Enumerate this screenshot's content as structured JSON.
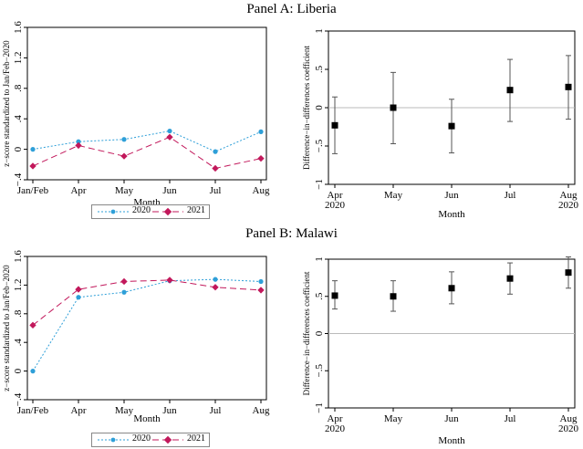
{
  "panels": [
    {
      "title": "Panel A: Liberia",
      "legend": [
        {
          "name": "2020",
          "color": "#2e9fd8"
        },
        {
          "name": "2021",
          "color": "#c2185b"
        }
      ]
    },
    {
      "title": "Panel B: Malawi",
      "legend": [
        {
          "name": "2020",
          "color": "#2e9fd8"
        },
        {
          "name": "2021",
          "color": "#c2185b"
        }
      ]
    }
  ],
  "chart_data": [
    {
      "id": "liberia-trend",
      "type": "line",
      "title": "",
      "xlabel": "Month",
      "ylabel": "z−score standardized to Jan/Feb−2020",
      "categories": [
        "Jan/Feb",
        "Apr",
        "May",
        "Jun",
        "Jul",
        "Aug"
      ],
      "yticks": [
        -0.4,
        0,
        0.4,
        0.8,
        1.2,
        1.6
      ],
      "ytick_labels": [
        "−.4",
        "0",
        ".4",
        ".8",
        "1.2",
        "1.6"
      ],
      "ylim": [
        -0.4,
        1.6
      ],
      "series": [
        {
          "name": "2020",
          "color": "#2e9fd8",
          "marker": "circle",
          "dash": "2,2",
          "values": [
            0.0,
            0.1,
            0.13,
            0.24,
            -0.03,
            0.23
          ]
        },
        {
          "name": "2021",
          "color": "#c2185b",
          "marker": "diamond",
          "dash": "7,4",
          "values": [
            -0.22,
            0.05,
            -0.09,
            0.16,
            -0.25,
            -0.12
          ]
        }
      ]
    },
    {
      "id": "liberia-did",
      "type": "scatter",
      "title": "",
      "xlabel": "Month",
      "ylabel": "Difference−in−differences coefficient",
      "categories": [
        "Apr\n2020",
        "May",
        "Jun",
        "Jul",
        "Aug\n2020"
      ],
      "yticks": [
        -1,
        -0.5,
        0,
        0.5,
        1
      ],
      "ytick_labels": [
        "−1",
        "−.5",
        "0",
        ".5",
        "1"
      ],
      "ylim": [
        -1,
        1
      ],
      "estimates": [
        -0.23,
        0.0,
        -0.24,
        0.23,
        0.27
      ],
      "ci_low": [
        -0.6,
        -0.47,
        -0.59,
        -0.18,
        -0.15
      ],
      "ci_high": [
        0.14,
        0.46,
        0.11,
        0.63,
        0.68
      ]
    },
    {
      "id": "malawi-trend",
      "type": "line",
      "title": "",
      "xlabel": "Month",
      "ylabel": "z−score standardized to Jan/Feb−2020",
      "categories": [
        "Jan/Feb",
        "Apr",
        "May",
        "Jun",
        "Jul",
        "Aug"
      ],
      "yticks": [
        -0.4,
        0,
        0.4,
        0.8,
        1.2,
        1.6
      ],
      "ytick_labels": [
        "−.4",
        "0",
        ".4",
        ".8",
        "1.2",
        "1.6"
      ],
      "ylim": [
        -0.4,
        1.6
      ],
      "series": [
        {
          "name": "2020",
          "color": "#2e9fd8",
          "marker": "circle",
          "dash": "2,2",
          "values": [
            0.0,
            1.03,
            1.1,
            1.26,
            1.28,
            1.25
          ]
        },
        {
          "name": "2021",
          "color": "#c2185b",
          "marker": "diamond",
          "dash": "7,4",
          "values": [
            0.64,
            1.14,
            1.25,
            1.27,
            1.17,
            1.13
          ]
        }
      ]
    },
    {
      "id": "malawi-did",
      "type": "scatter",
      "title": "",
      "xlabel": "Month",
      "ylabel": "Difference−in−differences coefficient",
      "categories": [
        "Apr\n2020",
        "May",
        "Jun",
        "Jul",
        "Aug\n2020"
      ],
      "yticks": [
        -1,
        -0.5,
        0,
        0.5,
        1
      ],
      "ytick_labels": [
        "−1",
        "−.5",
        "0",
        ".5",
        "1"
      ],
      "ylim": [
        -1,
        1
      ],
      "estimates": [
        0.51,
        0.5,
        0.61,
        0.74,
        0.82
      ],
      "ci_low": [
        0.33,
        0.3,
        0.4,
        0.53,
        0.61
      ],
      "ci_high": [
        0.71,
        0.71,
        0.83,
        0.95,
        1.03
      ]
    }
  ]
}
